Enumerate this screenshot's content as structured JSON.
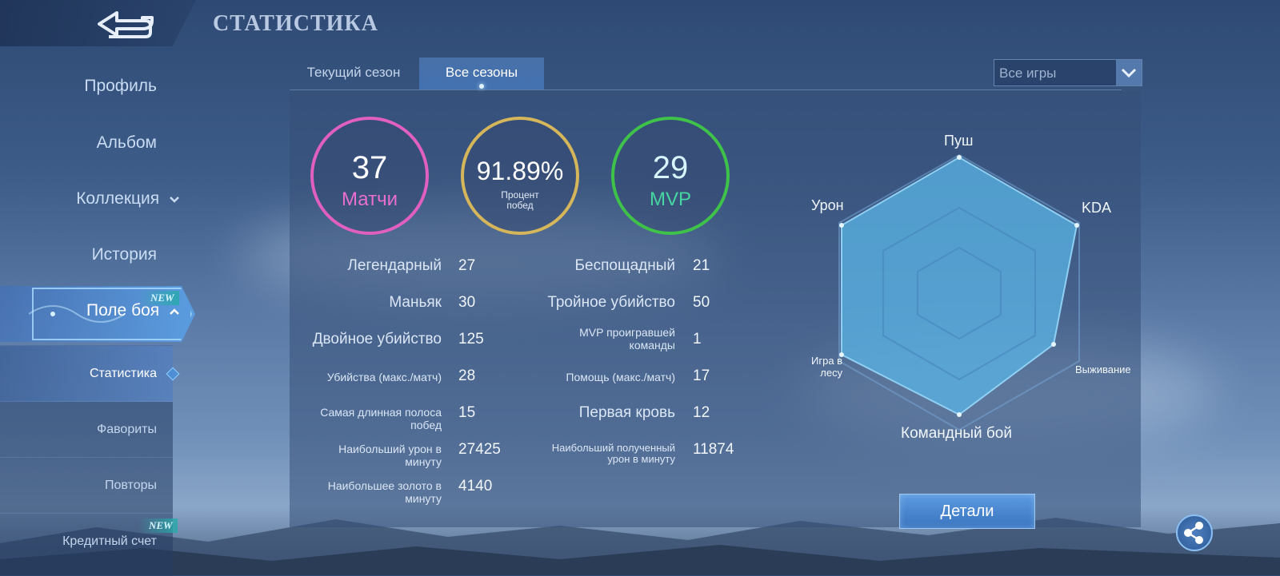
{
  "header": {
    "title": "СТАТИСТИКА",
    "back_icon": "back-arrow-icon"
  },
  "sidebar": {
    "items": [
      {
        "label": "Профиль"
      },
      {
        "label": "Альбом"
      },
      {
        "label": "Коллекция",
        "icon": "chevron-down-icon"
      },
      {
        "label": "История"
      },
      {
        "label": "Поле боя",
        "icon": "chevron-up-icon",
        "badge": "NEW",
        "active": true
      }
    ],
    "sub_items": [
      {
        "label": "Статистика",
        "active": true
      },
      {
        "label": "Фавориты"
      },
      {
        "label": "Повторы"
      },
      {
        "label": "Кредитный счет",
        "badge": "NEW"
      }
    ]
  },
  "tabs": [
    {
      "label": "Текущий сезон"
    },
    {
      "label": "Все сезоны",
      "active": true
    }
  ],
  "filter": {
    "selected": "Все игры"
  },
  "summary": {
    "matches": {
      "value": "37",
      "label": "Матчи",
      "color": "#e05fc0"
    },
    "winrate": {
      "value": "91.89%",
      "label_line1": "Процент",
      "label_line2": "побед",
      "color": "#d6b65a"
    },
    "mvp": {
      "value": "29",
      "label": "MVP",
      "color": "#3fc24a"
    }
  },
  "stats_left": [
    {
      "label": "Легендарный",
      "value": "27"
    },
    {
      "label": "Маньяк",
      "value": "30"
    },
    {
      "label": "Двойное убийство",
      "value": "125"
    },
    {
      "label": "Убийства (макс./матч)",
      "value": "28"
    },
    {
      "label_line1": "Самая длинная полоса",
      "label_line2": "побед",
      "value": "15"
    },
    {
      "label_line1": "Наибольший урон в",
      "label_line2": "минуту",
      "value": "27425"
    },
    {
      "label_line1": "Наибольшее золото в",
      "label_line2": "минуту",
      "value": "4140"
    }
  ],
  "stats_right": [
    {
      "label": "Беспощадный",
      "value": "21"
    },
    {
      "label": "Тройное убийство",
      "value": "50"
    },
    {
      "label_line1": "MVP проигравшей",
      "label_line2": "команды",
      "value": "1"
    },
    {
      "label": "Помощь (макс./матч)",
      "value": "17"
    },
    {
      "label": "Первая кровь",
      "value": "12"
    },
    {
      "label_line1": "Наибольший полученный",
      "label_line2": "урон в минуту",
      "value": "11874"
    }
  ],
  "radar": {
    "axes": [
      "Пуш",
      "KDA",
      "Выживание",
      "Командный бой",
      "Игра в лесу",
      "Урон"
    ],
    "jungle_line1": "Игра в",
    "jungle_line2": "лесу",
    "fill_color": "#5ab4e6"
  },
  "buttons": {
    "details": "Детали",
    "share_icon": "share-icon"
  }
}
